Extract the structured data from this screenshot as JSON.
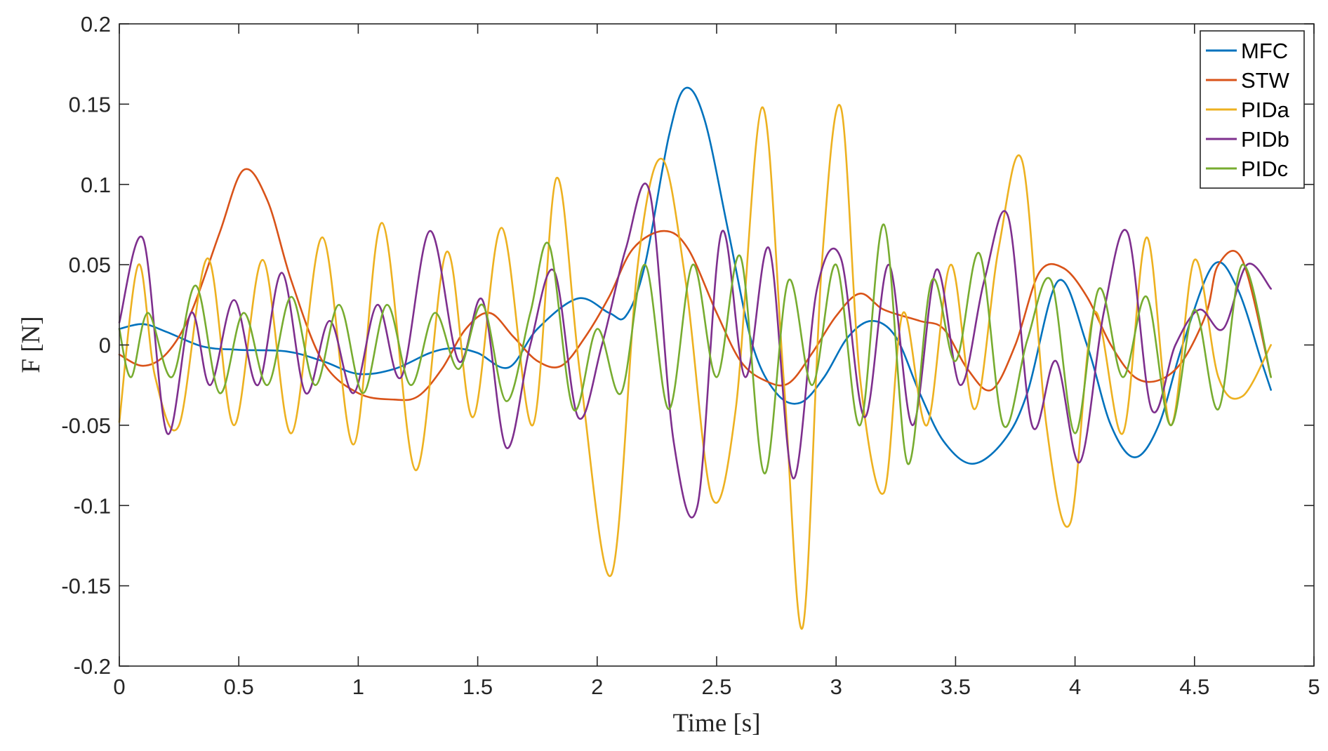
{
  "chart_data": {
    "type": "line",
    "xlabel": "Time [s]",
    "ylabel": "F [N]",
    "xlim": [
      0,
      5
    ],
    "ylim": [
      -0.2,
      0.2
    ],
    "xticks": [
      "0",
      "0.5",
      "1",
      "1.5",
      "2",
      "2.5",
      "3",
      "3.5",
      "4",
      "4.5",
      "5"
    ],
    "yticks": [
      "0.2",
      "0.15",
      "0.1",
      "0.05",
      "0",
      "-0.05",
      "-0.1",
      "-0.15",
      "-0.2"
    ],
    "legend_position": "top-right",
    "grid": false,
    "box": true,
    "series": [
      {
        "name": "MFC",
        "color": "#0072BD",
        "x": [
          0,
          0.1,
          0.2,
          0.35,
          0.5,
          0.7,
          0.85,
          1.0,
          1.15,
          1.3,
          1.4,
          1.5,
          1.63,
          1.75,
          1.92,
          2.05,
          2.12,
          2.2,
          2.3,
          2.37,
          2.45,
          2.55,
          2.65,
          2.75,
          2.85,
          2.95,
          3.05,
          3.15,
          3.25,
          3.35,
          3.45,
          3.57,
          3.7,
          3.8,
          3.93,
          4.05,
          4.15,
          4.25,
          4.35,
          4.45,
          4.58,
          4.68,
          4.78,
          4.82
        ],
        "y": [
          0.01,
          0.013,
          0.008,
          -0.001,
          -0.003,
          -0.004,
          -0.01,
          -0.018,
          -0.015,
          -0.005,
          -0.002,
          -0.005,
          -0.014,
          0.01,
          0.029,
          0.02,
          0.018,
          0.05,
          0.13,
          0.16,
          0.14,
          0.07,
          0.0,
          -0.03,
          -0.036,
          -0.02,
          0.005,
          0.015,
          0.005,
          -0.03,
          -0.06,
          -0.074,
          -0.06,
          -0.03,
          0.04,
          0.0,
          -0.05,
          -0.07,
          -0.05,
          0.0,
          0.05,
          0.035,
          -0.01,
          -0.028
        ]
      },
      {
        "name": "STW",
        "color": "#D95319",
        "x": [
          0,
          0.1,
          0.2,
          0.3,
          0.42,
          0.52,
          0.62,
          0.72,
          0.85,
          1.0,
          1.15,
          1.25,
          1.35,
          1.45,
          1.55,
          1.65,
          1.75,
          1.85,
          1.95,
          2.05,
          2.15,
          2.28,
          2.38,
          2.5,
          2.6,
          2.7,
          2.8,
          2.9,
          3.0,
          3.1,
          3.2,
          3.35,
          3.45,
          3.55,
          3.65,
          3.75,
          3.85,
          3.95,
          4.05,
          4.15,
          4.25,
          4.35,
          4.45,
          4.55,
          4.6,
          4.7,
          4.82
        ],
        "y": [
          -0.006,
          -0.013,
          -0.005,
          0.02,
          0.07,
          0.109,
          0.09,
          0.04,
          -0.01,
          -0.03,
          -0.034,
          -0.032,
          -0.015,
          0.01,
          0.02,
          0.005,
          -0.01,
          -0.013,
          0.005,
          0.03,
          0.06,
          0.071,
          0.06,
          0.02,
          -0.01,
          -0.022,
          -0.024,
          -0.005,
          0.018,
          0.032,
          0.022,
          0.015,
          0.01,
          -0.015,
          -0.028,
          0.0,
          0.045,
          0.048,
          0.03,
          0.0,
          -0.02,
          -0.022,
          -0.01,
          0.02,
          0.05,
          0.053,
          -0.02
        ]
      },
      {
        "name": "PIDa",
        "color": "#EDB120",
        "x": [
          0,
          0.08,
          0.15,
          0.25,
          0.37,
          0.48,
          0.6,
          0.72,
          0.85,
          0.98,
          1.1,
          1.24,
          1.37,
          1.48,
          1.6,
          1.73,
          1.83,
          1.93,
          2.06,
          2.17,
          2.27,
          2.37,
          2.48,
          2.58,
          2.69,
          2.78,
          2.86,
          2.94,
          3.02,
          3.1,
          3.2,
          3.28,
          3.38,
          3.48,
          3.58,
          3.68,
          3.78,
          3.88,
          3.98,
          4.08,
          4.2,
          4.3,
          4.4,
          4.5,
          4.6,
          4.7,
          4.82
        ],
        "y": [
          -0.048,
          0.05,
          -0.02,
          -0.05,
          0.054,
          -0.05,
          0.053,
          -0.055,
          0.067,
          -0.062,
          0.076,
          -0.078,
          0.058,
          -0.045,
          0.073,
          -0.05,
          0.104,
          -0.02,
          -0.143,
          0.05,
          0.116,
          0.04,
          -0.095,
          -0.04,
          0.148,
          -0.02,
          -0.176,
          0.05,
          0.148,
          -0.02,
          -0.092,
          0.02,
          -0.05,
          0.05,
          -0.04,
          0.06,
          0.114,
          -0.05,
          -0.111,
          0.02,
          -0.055,
          0.067,
          -0.05,
          0.053,
          -0.02,
          -0.032,
          0.0
        ]
      },
      {
        "name": "PIDb",
        "color": "#7E2F8E",
        "x": [
          0,
          0.1,
          0.2,
          0.3,
          0.38,
          0.48,
          0.58,
          0.68,
          0.78,
          0.88,
          0.98,
          1.08,
          1.18,
          1.3,
          1.42,
          1.52,
          1.62,
          1.72,
          1.82,
          1.92,
          2.02,
          2.12,
          2.22,
          2.32,
          2.42,
          2.52,
          2.62,
          2.72,
          2.82,
          2.92,
          3.02,
          3.12,
          3.22,
          3.32,
          3.42,
          3.52,
          3.62,
          3.72,
          3.82,
          3.92,
          4.02,
          4.12,
          4.22,
          4.32,
          4.42,
          4.52,
          4.62,
          4.72,
          4.82
        ],
        "y": [
          0.014,
          0.066,
          -0.055,
          0.02,
          -0.025,
          0.028,
          -0.025,
          0.045,
          -0.03,
          0.015,
          -0.03,
          0.025,
          -0.02,
          0.071,
          -0.01,
          0.028,
          -0.064,
          0.0,
          0.046,
          -0.045,
          0.0,
          0.06,
          0.095,
          -0.06,
          -0.1,
          0.07,
          -0.02,
          0.06,
          -0.083,
          0.035,
          0.054,
          -0.045,
          0.05,
          -0.05,
          0.047,
          -0.025,
          0.04,
          0.08,
          -0.05,
          -0.01,
          -0.073,
          0.02,
          0.07,
          -0.04,
          0.0,
          0.022,
          0.01,
          0.05,
          0.035
        ]
      },
      {
        "name": "PIDc",
        "color": "#77AC30",
        "x": [
          0,
          0.05,
          0.12,
          0.22,
          0.32,
          0.42,
          0.52,
          0.62,
          0.72,
          0.82,
          0.92,
          1.02,
          1.12,
          1.22,
          1.32,
          1.42,
          1.52,
          1.62,
          1.72,
          1.8,
          1.9,
          2.0,
          2.1,
          2.2,
          2.3,
          2.4,
          2.5,
          2.6,
          2.7,
          2.8,
          2.9,
          3.0,
          3.1,
          3.2,
          3.3,
          3.4,
          3.5,
          3.6,
          3.7,
          3.8,
          3.9,
          4.0,
          4.1,
          4.2,
          4.3,
          4.4,
          4.5,
          4.6,
          4.7,
          4.82
        ],
        "y": [
          0.01,
          -0.02,
          0.02,
          -0.02,
          0.037,
          -0.03,
          0.02,
          -0.025,
          0.03,
          -0.025,
          0.025,
          -0.03,
          0.025,
          -0.025,
          0.02,
          -0.015,
          0.025,
          -0.035,
          0.02,
          0.062,
          -0.04,
          0.01,
          -0.03,
          0.05,
          -0.04,
          0.05,
          -0.02,
          0.055,
          -0.08,
          0.04,
          -0.025,
          0.05,
          -0.05,
          0.075,
          -0.074,
          0.04,
          -0.01,
          0.057,
          -0.05,
          0.003,
          0.04,
          -0.055,
          0.035,
          -0.02,
          0.03,
          -0.05,
          0.022,
          -0.04,
          0.05,
          -0.02
        ]
      }
    ]
  }
}
